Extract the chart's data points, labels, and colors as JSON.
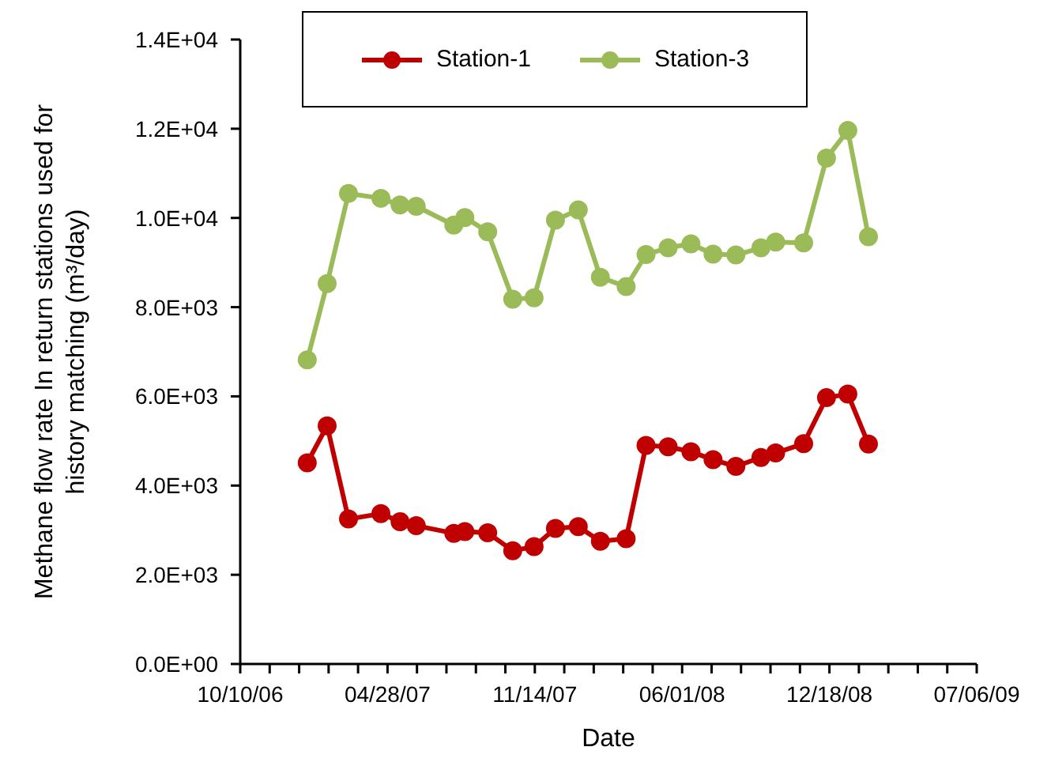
{
  "chart_data": {
    "type": "line",
    "xlabel": "Date",
    "ylabel": "Methane flow rate In return stations used for history matching (m³/day)",
    "x": [
      "2007-01-09",
      "2007-02-05",
      "2007-03-06",
      "2007-04-19",
      "2007-05-15",
      "2007-06-06",
      "2007-07-27",
      "2007-08-11",
      "2007-09-11",
      "2007-10-15",
      "2007-11-13",
      "2007-12-12",
      "2008-01-12",
      "2008-02-11",
      "2008-03-17",
      "2008-04-13",
      "2008-05-13",
      "2008-06-13",
      "2008-07-13",
      "2008-08-13",
      "2008-09-16",
      "2008-10-06",
      "2008-11-13",
      "2008-12-14",
      "2009-01-12",
      "2009-02-09"
    ],
    "series": [
      {
        "name": "Station-1",
        "color": "#c00000",
        "values": [
          4510,
          5340,
          3250,
          3370,
          3190,
          3100,
          2930,
          2970,
          2940,
          2540,
          2630,
          3040,
          3080,
          2750,
          2810,
          4900,
          4870,
          4760,
          4580,
          4430,
          4630,
          4730,
          4940,
          5970,
          6050,
          4930
        ]
      },
      {
        "name": "Station-3",
        "color": "#9bbb59",
        "values": [
          6820,
          8530,
          10550,
          10440,
          10290,
          10260,
          9840,
          10010,
          9690,
          8180,
          8210,
          9950,
          10180,
          8670,
          8460,
          9180,
          9330,
          9420,
          9190,
          9170,
          9330,
          9460,
          9440,
          11340,
          11960,
          9580
        ]
      }
    ],
    "xlim": [
      "2006-10-10",
      "2009-07-06"
    ],
    "xticks": [
      {
        "value": "2006-10-10",
        "label": "10/10/06"
      },
      {
        "value": "2006-11-19",
        "label": null
      },
      {
        "value": "2006-12-29",
        "label": null
      },
      {
        "value": "2007-02-07",
        "label": null
      },
      {
        "value": "2007-03-19",
        "label": null
      },
      {
        "value": "2007-04-28",
        "label": "04/28/07"
      },
      {
        "value": "2007-06-07",
        "label": null
      },
      {
        "value": "2007-07-17",
        "label": null
      },
      {
        "value": "2007-08-26",
        "label": null
      },
      {
        "value": "2007-10-05",
        "label": null
      },
      {
        "value": "2007-11-14",
        "label": "11/14/07"
      },
      {
        "value": "2007-12-24",
        "label": null
      },
      {
        "value": "2008-02-02",
        "label": null
      },
      {
        "value": "2008-03-13",
        "label": null
      },
      {
        "value": "2008-04-22",
        "label": null
      },
      {
        "value": "2008-06-01",
        "label": "06/01/08"
      },
      {
        "value": "2008-07-11",
        "label": null
      },
      {
        "value": "2008-08-20",
        "label": null
      },
      {
        "value": "2008-09-29",
        "label": null
      },
      {
        "value": "2008-11-08",
        "label": null
      },
      {
        "value": "2008-12-18",
        "label": "12/18/08"
      },
      {
        "value": "2009-01-27",
        "label": null
      },
      {
        "value": "2009-03-08",
        "label": null
      },
      {
        "value": "2009-04-17",
        "label": null
      },
      {
        "value": "2009-05-27",
        "label": null
      },
      {
        "value": "2009-07-06",
        "label": "07/06/09"
      }
    ],
    "ylim": [
      0,
      14000
    ],
    "yticks": [
      {
        "value": 0,
        "label": "0.0E+00"
      },
      {
        "value": 2000,
        "label": "2.0E+03"
      },
      {
        "value": 4000,
        "label": "4.0E+03"
      },
      {
        "value": 6000,
        "label": "6.0E+03"
      },
      {
        "value": 8000,
        "label": "8.0E+03"
      },
      {
        "value": 10000,
        "label": "1.0E+04"
      },
      {
        "value": 12000,
        "label": "1.2E+04"
      },
      {
        "value": 14000,
        "label": "1.4E+04"
      }
    ],
    "grid": false,
    "legend": "top",
    "marker": "circle",
    "line_style": "solid"
  }
}
